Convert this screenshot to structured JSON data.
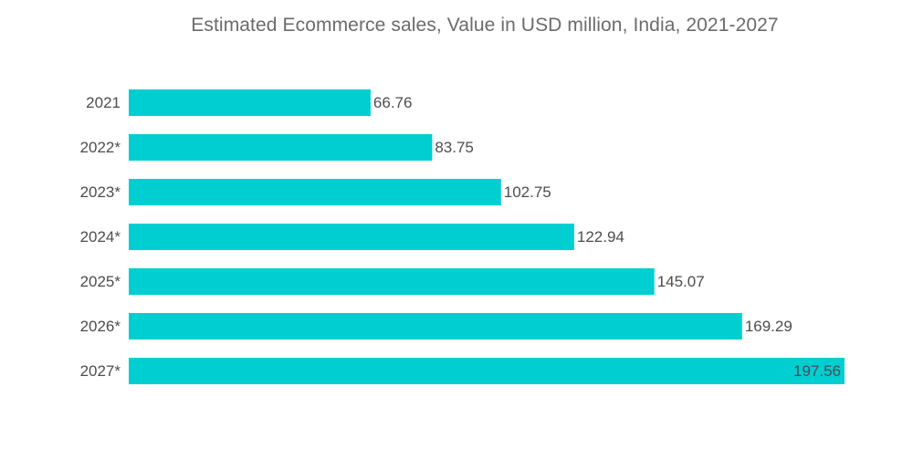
{
  "chart_data": {
    "type": "bar",
    "orientation": "horizontal",
    "title": "Estimated Ecommerce sales, Value in USD million, India, 2021-2027",
    "xlabel": "",
    "ylabel": "",
    "categories": [
      "2021",
      "2022*",
      "2023*",
      "2024*",
      "2025*",
      "2026*",
      "2027*"
    ],
    "values": [
      66.76,
      83.75,
      102.75,
      122.94,
      145.07,
      169.29,
      197.56
    ],
    "value_labels": [
      "66.76",
      "83.75",
      "102.75",
      "122.94",
      "145.07",
      "169.29",
      "197.56"
    ],
    "xlim": [
      0,
      197.56
    ],
    "grid": false,
    "legend": "none",
    "colors": {
      "bar": "#00CED1",
      "label": "#4d4d4d",
      "title": "#6b6b6b"
    }
  }
}
